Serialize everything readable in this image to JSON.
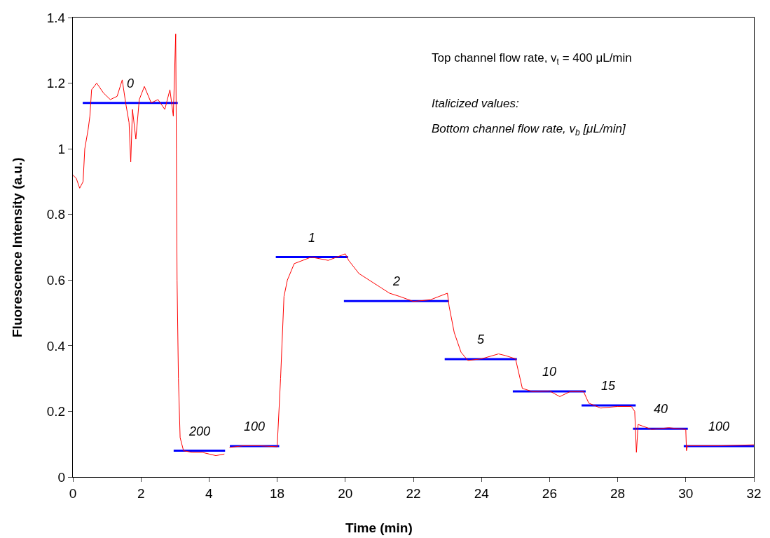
{
  "chart_data": [
    {
      "type": "line",
      "ylabel": "Fluorescence Intensity (a.u.)",
      "xlim": [
        0,
        4.5
      ],
      "xticks": [
        0,
        2,
        4
      ],
      "ylim": [
        0,
        1.4
      ],
      "yticks": [
        0,
        0.2,
        0.4,
        0.6,
        0.8,
        1,
        1.2,
        1.4
      ],
      "legend": false,
      "marker": "none",
      "series": [
        {
          "color": "#ff0000",
          "x": [
            0,
            0.1,
            0.2,
            0.3,
            0.35,
            0.45,
            0.5,
            0.55,
            0.7,
            0.9,
            1.1,
            1.3,
            1.45,
            1.55,
            1.65,
            1.7,
            1.75,
            1.85,
            1.95,
            2.1,
            2.3,
            2.5,
            2.7,
            2.85,
            2.95,
            3.02,
            3.04,
            3.06,
            3.1,
            3.15,
            3.25,
            3.5,
            3.8,
            4.0,
            4.2,
            4.45
          ],
          "values": [
            0.92,
            0.91,
            0.88,
            0.9,
            1.0,
            1.06,
            1.1,
            1.18,
            1.2,
            1.17,
            1.15,
            1.16,
            1.21,
            1.14,
            1.08,
            0.96,
            1.12,
            1.03,
            1.15,
            1.19,
            1.14,
            1.15,
            1.12,
            1.18,
            1.1,
            1.35,
            1.0,
            0.6,
            0.3,
            0.12,
            0.08,
            0.075,
            0.075,
            0.07,
            0.065,
            0.07
          ]
        },
        {
          "name": "0",
          "color": "#0000ff",
          "x": [
            0.29,
            3.08
          ],
          "values": [
            1.14,
            1.14
          ]
        },
        {
          "name": "200",
          "color": "#0000ff",
          "x": [
            2.96,
            4.47
          ],
          "values": [
            0.08,
            0.08
          ]
        }
      ]
    },
    {
      "type": "line",
      "xlabel": "Time (min)",
      "xlim": [
        16.5,
        32
      ],
      "xticks": [
        18,
        20,
        22,
        24,
        26,
        28,
        30,
        32
      ],
      "ylim": [
        0,
        1.4
      ],
      "yticks": [
        0,
        0.2,
        0.4,
        0.6,
        0.8,
        1,
        1.2,
        1.4
      ],
      "tick_labels": "x",
      "legend": false,
      "marker": "none",
      "series": [
        {
          "color": "#ff0000",
          "x": [
            16.6,
            17,
            17.5,
            18.0,
            18.1,
            18.2,
            18.3,
            18.5,
            19,
            19.5,
            20.0,
            20.1,
            20.4,
            20.7,
            21,
            21.3,
            21.6,
            22,
            22.5,
            23.0,
            23.05,
            23.2,
            23.4,
            23.6,
            24,
            24.5,
            24.7,
            25.0,
            25.2,
            25.5,
            26,
            26.3,
            26.6,
            27.0,
            27.15,
            27.5,
            28,
            28.4,
            28.5,
            28.55,
            28.6,
            29,
            29.5,
            30.0,
            30.02,
            30.05,
            31,
            32
          ],
          "values": [
            0.09,
            0.095,
            0.095,
            0.092,
            0.3,
            0.55,
            0.6,
            0.65,
            0.67,
            0.66,
            0.68,
            0.66,
            0.62,
            0.6,
            0.58,
            0.56,
            0.55,
            0.535,
            0.54,
            0.56,
            0.52,
            0.44,
            0.38,
            0.355,
            0.36,
            0.375,
            0.37,
            0.36,
            0.27,
            0.26,
            0.262,
            0.245,
            0.26,
            0.26,
            0.225,
            0.21,
            0.215,
            0.215,
            0.2,
            0.075,
            0.16,
            0.145,
            0.15,
            0.145,
            0.08,
            0.095,
            0.095,
            0.098
          ]
        },
        {
          "name": "100",
          "color": "#0000ff",
          "x": [
            16.61,
            18.06
          ],
          "values": [
            0.094,
            0.094
          ]
        },
        {
          "name": "1",
          "color": "#0000ff",
          "x": [
            17.96,
            20.08
          ],
          "values": [
            0.67,
            0.67
          ]
        },
        {
          "name": "2",
          "color": "#0000ff",
          "x": [
            19.96,
            23.04
          ],
          "values": [
            0.536,
            0.536
          ]
        },
        {
          "name": "5",
          "color": "#0000ff",
          "x": [
            22.92,
            25.04
          ],
          "values": [
            0.359,
            0.359
          ]
        },
        {
          "name": "10",
          "color": "#0000ff",
          "x": [
            24.92,
            27.06
          ],
          "values": [
            0.261,
            0.261
          ]
        },
        {
          "name": "15",
          "color": "#0000ff",
          "x": [
            26.94,
            28.53
          ],
          "values": [
            0.218,
            0.218
          ]
        },
        {
          "name": "40",
          "color": "#0000ff",
          "x": [
            28.45,
            30.06
          ],
          "values": [
            0.147,
            0.147
          ]
        },
        {
          "name": "100",
          "color": "#0000ff",
          "x": [
            29.94,
            32
          ],
          "values": [
            0.094,
            0.094
          ]
        }
      ],
      "annotations": [
        "Top channel flow rate, v$_{t}$ = 400 μL/min",
        "Italicized values:",
        "Bottom channel flow rate, v$_{b}$ [μL/min]"
      ]
    }
  ]
}
